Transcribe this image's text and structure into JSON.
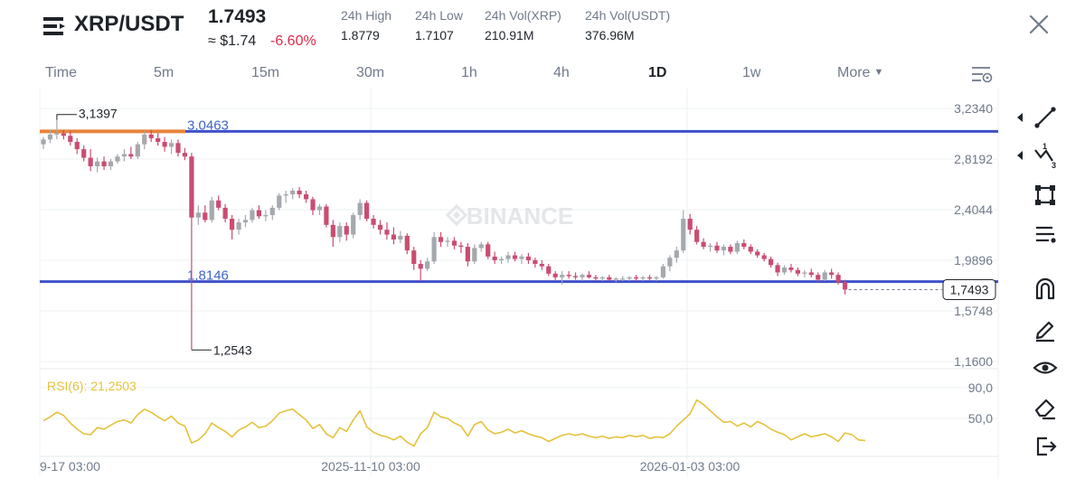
{
  "header": {
    "pair": "XRP/USDT",
    "last_price": "1.7493",
    "approx_price": "≈ $1.74",
    "change_pct": "-6.60%",
    "stats": [
      {
        "label": "24h High",
        "value": "1.8779"
      },
      {
        "label": "24h Low",
        "value": "1.7107"
      },
      {
        "label": "24h Vol(XRP)",
        "value": "210.91M"
      },
      {
        "label": "24h Vol(USDT)",
        "value": "376.96M"
      }
    ]
  },
  "tabs": {
    "items": [
      {
        "label": "Time"
      },
      {
        "label": "5m"
      },
      {
        "label": "15m"
      },
      {
        "label": "30m"
      },
      {
        "label": "1h"
      },
      {
        "label": "4h"
      },
      {
        "label": "1D"
      },
      {
        "label": "1w"
      }
    ],
    "active": "1D",
    "more_label": "More"
  },
  "colors": {
    "up": "#a5a9ad",
    "down": "#c94d72",
    "hline": "#3f51c9",
    "hline_label": "#3f64c8",
    "orange_line": "#e8833a",
    "rsi": "#e4c23c",
    "grid": "#eef0f3",
    "axis_text": "#707a8a"
  },
  "chart": {
    "watermark": "BINANCE",
    "y_axis_labels": [
      "3,2340",
      "2,8192",
      "2,4044",
      "1,9896",
      "1,5748",
      "1,1600"
    ],
    "x_axis_labels": [
      "9-17 03:00",
      "2025-11-10 03:00",
      "2026-01-03 03:00"
    ],
    "high_annotation": "3,1397",
    "low_annotation": "1,2543",
    "hline_top_label": "3,0463",
    "hline_bottom_label": "1,8146",
    "current_price_tag": "1,7493",
    "rsi_label": "RSI(6): 21,2503",
    "rsi_axis_labels": [
      "90,0",
      "50,0"
    ]
  },
  "chart_data": {
    "type": "candlestick",
    "interval": "1D",
    "y_range": [
      1.16,
      3.234
    ],
    "x_ticks": [
      "9-17 03:00",
      "2025-11-10 03:00",
      "2026-01-03 03:00"
    ],
    "horizontal_lines": [
      3.0463,
      1.8146
    ],
    "annotated_high": 3.1397,
    "annotated_low": 1.2543,
    "last_price": 1.7493,
    "candles": [
      {
        "o": 2.94,
        "h": 3.0,
        "l": 2.9,
        "c": 2.98
      },
      {
        "o": 2.98,
        "h": 3.06,
        "l": 2.95,
        "c": 3.02
      },
      {
        "o": 3.02,
        "h": 3.14,
        "l": 2.98,
        "c": 3.03
      },
      {
        "o": 3.03,
        "h": 3.06,
        "l": 2.98,
        "c": 3.01
      },
      {
        "o": 3.01,
        "h": 3.05,
        "l": 2.93,
        "c": 2.96
      },
      {
        "o": 2.96,
        "h": 2.99,
        "l": 2.86,
        "c": 2.9
      },
      {
        "o": 2.9,
        "h": 2.93,
        "l": 2.8,
        "c": 2.83
      },
      {
        "o": 2.83,
        "h": 2.9,
        "l": 2.72,
        "c": 2.76
      },
      {
        "o": 2.76,
        "h": 2.83,
        "l": 2.71,
        "c": 2.8
      },
      {
        "o": 2.8,
        "h": 2.84,
        "l": 2.73,
        "c": 2.76
      },
      {
        "o": 2.76,
        "h": 2.82,
        "l": 2.73,
        "c": 2.8
      },
      {
        "o": 2.8,
        "h": 2.86,
        "l": 2.78,
        "c": 2.84
      },
      {
        "o": 2.84,
        "h": 2.9,
        "l": 2.8,
        "c": 2.86
      },
      {
        "o": 2.86,
        "h": 2.92,
        "l": 2.82,
        "c": 2.84
      },
      {
        "o": 2.84,
        "h": 2.96,
        "l": 2.82,
        "c": 2.94
      },
      {
        "o": 2.94,
        "h": 3.05,
        "l": 2.9,
        "c": 3.02
      },
      {
        "o": 3.02,
        "h": 3.06,
        "l": 2.96,
        "c": 2.99
      },
      {
        "o": 2.99,
        "h": 3.03,
        "l": 2.93,
        "c": 2.96
      },
      {
        "o": 2.96,
        "h": 3.0,
        "l": 2.88,
        "c": 2.92
      },
      {
        "o": 2.92,
        "h": 2.98,
        "l": 2.86,
        "c": 2.95
      },
      {
        "o": 2.95,
        "h": 2.98,
        "l": 2.84,
        "c": 2.87
      },
      {
        "o": 2.87,
        "h": 2.91,
        "l": 2.81,
        "c": 2.84
      },
      {
        "o": 2.84,
        "h": 2.87,
        "l": 1.2543,
        "c": 2.34
      },
      {
        "o": 2.34,
        "h": 2.44,
        "l": 2.28,
        "c": 2.38
      },
      {
        "o": 2.38,
        "h": 2.44,
        "l": 2.3,
        "c": 2.32
      },
      {
        "o": 2.32,
        "h": 2.51,
        "l": 2.3,
        "c": 2.48
      },
      {
        "o": 2.48,
        "h": 2.52,
        "l": 2.4,
        "c": 2.42
      },
      {
        "o": 2.42,
        "h": 2.45,
        "l": 2.3,
        "c": 2.33
      },
      {
        "o": 2.33,
        "h": 2.36,
        "l": 2.16,
        "c": 2.24
      },
      {
        "o": 2.24,
        "h": 2.33,
        "l": 2.2,
        "c": 2.3
      },
      {
        "o": 2.3,
        "h": 2.36,
        "l": 2.26,
        "c": 2.32
      },
      {
        "o": 2.32,
        "h": 2.42,
        "l": 2.3,
        "c": 2.4
      },
      {
        "o": 2.4,
        "h": 2.44,
        "l": 2.33,
        "c": 2.35
      },
      {
        "o": 2.35,
        "h": 2.4,
        "l": 2.31,
        "c": 2.36
      },
      {
        "o": 2.36,
        "h": 2.44,
        "l": 2.32,
        "c": 2.42
      },
      {
        "o": 2.42,
        "h": 2.54,
        "l": 2.4,
        "c": 2.52
      },
      {
        "o": 2.52,
        "h": 2.56,
        "l": 2.46,
        "c": 2.53
      },
      {
        "o": 2.53,
        "h": 2.58,
        "l": 2.49,
        "c": 2.56
      },
      {
        "o": 2.56,
        "h": 2.59,
        "l": 2.5,
        "c": 2.53
      },
      {
        "o": 2.53,
        "h": 2.56,
        "l": 2.46,
        "c": 2.49
      },
      {
        "o": 2.49,
        "h": 2.51,
        "l": 2.36,
        "c": 2.4
      },
      {
        "o": 2.4,
        "h": 2.45,
        "l": 2.36,
        "c": 2.43
      },
      {
        "o": 2.43,
        "h": 2.45,
        "l": 2.26,
        "c": 2.28
      },
      {
        "o": 2.28,
        "h": 2.32,
        "l": 2.1,
        "c": 2.18
      },
      {
        "o": 2.18,
        "h": 2.3,
        "l": 2.14,
        "c": 2.27
      },
      {
        "o": 2.27,
        "h": 2.3,
        "l": 2.15,
        "c": 2.2
      },
      {
        "o": 2.2,
        "h": 2.38,
        "l": 2.17,
        "c": 2.36
      },
      {
        "o": 2.36,
        "h": 2.49,
        "l": 2.32,
        "c": 2.46
      },
      {
        "o": 2.46,
        "h": 2.48,
        "l": 2.31,
        "c": 2.33
      },
      {
        "o": 2.33,
        "h": 2.36,
        "l": 2.25,
        "c": 2.28
      },
      {
        "o": 2.28,
        "h": 2.32,
        "l": 2.2,
        "c": 2.24
      },
      {
        "o": 2.24,
        "h": 2.3,
        "l": 2.16,
        "c": 2.2
      },
      {
        "o": 2.2,
        "h": 2.26,
        "l": 2.12,
        "c": 2.16
      },
      {
        "o": 2.16,
        "h": 2.23,
        "l": 2.13,
        "c": 2.19
      },
      {
        "o": 2.19,
        "h": 2.21,
        "l": 2.04,
        "c": 2.07
      },
      {
        "o": 2.07,
        "h": 2.1,
        "l": 1.91,
        "c": 1.96
      },
      {
        "o": 1.96,
        "h": 1.99,
        "l": 1.82,
        "c": 1.92
      },
      {
        "o": 1.92,
        "h": 2.01,
        "l": 1.9,
        "c": 1.98
      },
      {
        "o": 1.98,
        "h": 2.22,
        "l": 1.96,
        "c": 2.18
      },
      {
        "o": 2.18,
        "h": 2.22,
        "l": 2.1,
        "c": 2.14
      },
      {
        "o": 2.14,
        "h": 2.18,
        "l": 2.1,
        "c": 2.15
      },
      {
        "o": 2.15,
        "h": 2.18,
        "l": 2.08,
        "c": 2.11
      },
      {
        "o": 2.11,
        "h": 2.14,
        "l": 2.05,
        "c": 2.1
      },
      {
        "o": 2.1,
        "h": 2.13,
        "l": 1.94,
        "c": 1.98
      },
      {
        "o": 1.98,
        "h": 2.12,
        "l": 1.96,
        "c": 2.09
      },
      {
        "o": 2.09,
        "h": 2.14,
        "l": 2.06,
        "c": 2.12
      },
      {
        "o": 2.12,
        "h": 2.14,
        "l": 2.0,
        "c": 2.02
      },
      {
        "o": 2.02,
        "h": 2.06,
        "l": 1.96,
        "c": 1.99
      },
      {
        "o": 1.99,
        "h": 2.02,
        "l": 1.96,
        "c": 2.0
      },
      {
        "o": 2.0,
        "h": 2.06,
        "l": 1.97,
        "c": 2.03
      },
      {
        "o": 2.03,
        "h": 2.06,
        "l": 1.98,
        "c": 2.0
      },
      {
        "o": 2.0,
        "h": 2.04,
        "l": 1.96,
        "c": 2.02
      },
      {
        "o": 2.02,
        "h": 2.05,
        "l": 1.96,
        "c": 1.99
      },
      {
        "o": 1.99,
        "h": 2.01,
        "l": 1.93,
        "c": 1.96
      },
      {
        "o": 1.96,
        "h": 1.99,
        "l": 1.91,
        "c": 1.94
      },
      {
        "o": 1.94,
        "h": 1.96,
        "l": 1.86,
        "c": 1.88
      },
      {
        "o": 1.88,
        "h": 1.9,
        "l": 1.82,
        "c": 1.85
      },
      {
        "o": 1.85,
        "h": 1.9,
        "l": 1.79,
        "c": 1.87
      },
      {
        "o": 1.87,
        "h": 1.9,
        "l": 1.84,
        "c": 1.86
      },
      {
        "o": 1.86,
        "h": 1.89,
        "l": 1.83,
        "c": 1.85
      },
      {
        "o": 1.85,
        "h": 1.88,
        "l": 1.82,
        "c": 1.87
      },
      {
        "o": 1.87,
        "h": 1.9,
        "l": 1.84,
        "c": 1.85
      },
      {
        "o": 1.85,
        "h": 1.87,
        "l": 1.82,
        "c": 1.84
      },
      {
        "o": 1.84,
        "h": 1.86,
        "l": 1.82,
        "c": 1.85
      },
      {
        "o": 1.85,
        "h": 1.87,
        "l": 1.82,
        "c": 1.83
      },
      {
        "o": 1.83,
        "h": 1.85,
        "l": 1.81,
        "c": 1.84
      },
      {
        "o": 1.84,
        "h": 1.86,
        "l": 1.82,
        "c": 1.84
      },
      {
        "o": 1.84,
        "h": 1.86,
        "l": 1.82,
        "c": 1.85
      },
      {
        "o": 1.85,
        "h": 1.87,
        "l": 1.82,
        "c": 1.84
      },
      {
        "o": 1.84,
        "h": 1.86,
        "l": 1.82,
        "c": 1.85
      },
      {
        "o": 1.85,
        "h": 1.87,
        "l": 1.82,
        "c": 1.84
      },
      {
        "o": 1.84,
        "h": 1.86,
        "l": 1.82,
        "c": 1.85
      },
      {
        "o": 1.85,
        "h": 1.96,
        "l": 1.84,
        "c": 1.94
      },
      {
        "o": 1.94,
        "h": 2.03,
        "l": 1.9,
        "c": 2.01
      },
      {
        "o": 2.01,
        "h": 2.1,
        "l": 1.97,
        "c": 2.07
      },
      {
        "o": 2.07,
        "h": 2.4,
        "l": 2.05,
        "c": 2.33
      },
      {
        "o": 2.33,
        "h": 2.37,
        "l": 2.2,
        "c": 2.24
      },
      {
        "o": 2.24,
        "h": 2.27,
        "l": 2.12,
        "c": 2.14
      },
      {
        "o": 2.14,
        "h": 2.17,
        "l": 2.08,
        "c": 2.1
      },
      {
        "o": 2.1,
        "h": 2.13,
        "l": 2.06,
        "c": 2.11
      },
      {
        "o": 2.11,
        "h": 2.14,
        "l": 2.05,
        "c": 2.07
      },
      {
        "o": 2.07,
        "h": 2.12,
        "l": 2.03,
        "c": 2.1
      },
      {
        "o": 2.1,
        "h": 2.12,
        "l": 2.04,
        "c": 2.06
      },
      {
        "o": 2.06,
        "h": 2.15,
        "l": 2.04,
        "c": 2.13
      },
      {
        "o": 2.13,
        "h": 2.16,
        "l": 2.08,
        "c": 2.1
      },
      {
        "o": 2.1,
        "h": 2.12,
        "l": 2.04,
        "c": 2.06
      },
      {
        "o": 2.06,
        "h": 2.08,
        "l": 2.01,
        "c": 2.03
      },
      {
        "o": 2.03,
        "h": 2.05,
        "l": 1.98,
        "c": 2.0
      },
      {
        "o": 2.0,
        "h": 2.02,
        "l": 1.93,
        "c": 1.95
      },
      {
        "o": 1.95,
        "h": 1.97,
        "l": 1.86,
        "c": 1.89
      },
      {
        "o": 1.89,
        "h": 1.95,
        "l": 1.87,
        "c": 1.93
      },
      {
        "o": 1.93,
        "h": 1.96,
        "l": 1.89,
        "c": 1.91
      },
      {
        "o": 1.91,
        "h": 1.93,
        "l": 1.86,
        "c": 1.88
      },
      {
        "o": 1.88,
        "h": 1.91,
        "l": 1.85,
        "c": 1.89
      },
      {
        "o": 1.89,
        "h": 1.92,
        "l": 1.85,
        "c": 1.87
      },
      {
        "o": 1.87,
        "h": 1.89,
        "l": 1.81,
        "c": 1.83
      },
      {
        "o": 1.83,
        "h": 1.91,
        "l": 1.82,
        "c": 1.89
      },
      {
        "o": 1.89,
        "h": 1.92,
        "l": 1.84,
        "c": 1.87
      },
      {
        "o": 1.87,
        "h": 1.89,
        "l": 1.79,
        "c": 1.81
      },
      {
        "o": 1.81,
        "h": 1.83,
        "l": 1.71,
        "c": 1.7493
      }
    ],
    "rsi": {
      "label": "RSI(6): 21,2503",
      "last": 21.2503,
      "axis_ticks": [
        90,
        50
      ],
      "values": [
        47,
        52,
        58,
        54,
        44,
        36,
        30,
        29,
        38,
        36,
        41,
        46,
        48,
        44,
        55,
        62,
        58,
        52,
        47,
        53,
        44,
        40,
        18,
        22,
        30,
        44,
        38,
        33,
        26,
        35,
        39,
        45,
        38,
        40,
        47,
        57,
        60,
        62,
        55,
        48,
        37,
        42,
        30,
        25,
        38,
        33,
        48,
        60,
        39,
        32,
        28,
        26,
        22,
        27,
        19,
        14,
        30,
        38,
        58,
        52,
        50,
        44,
        40,
        27,
        42,
        46,
        35,
        30,
        32,
        36,
        31,
        34,
        30,
        27,
        25,
        20,
        24,
        28,
        30,
        28,
        30,
        27,
        25,
        27,
        24,
        26,
        25,
        28,
        26,
        28,
        24,
        26,
        25,
        30,
        40,
        48,
        56,
        74,
        68,
        60,
        52,
        45,
        46,
        40,
        44,
        39,
        46,
        42,
        36,
        32,
        29,
        22,
        26,
        30,
        26,
        28,
        30,
        26,
        20,
        31,
        29,
        22,
        21.25
      ]
    }
  }
}
